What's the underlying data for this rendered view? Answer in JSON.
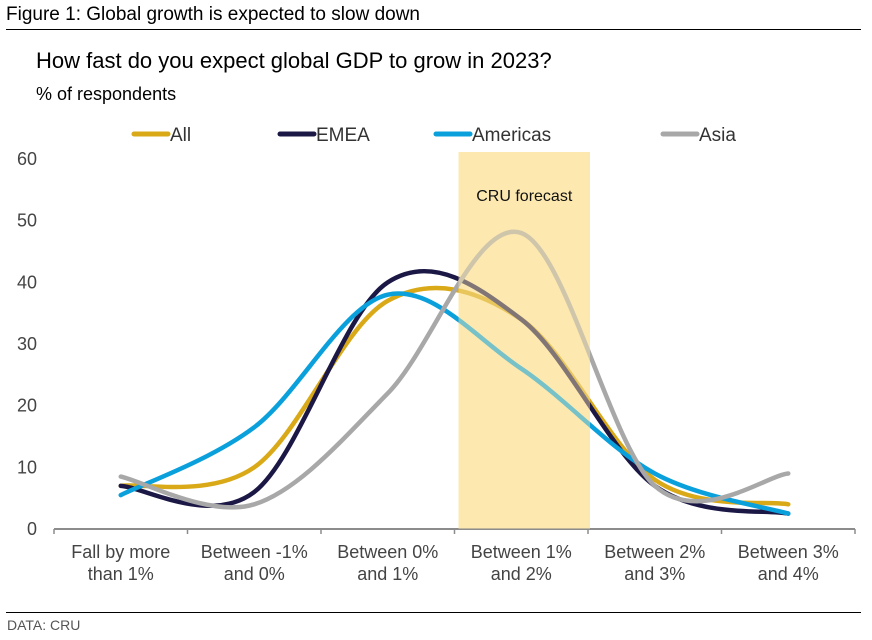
{
  "figure_title": "Figure 1: Global growth is expected to slow down",
  "source": "DATA: CRU",
  "chart_data": {
    "type": "line",
    "title": "How fast do you expect global GDP to grow in 2023?",
    "subtitle": "% of respondents",
    "xlabel": "",
    "ylabel": "% of respondents",
    "ylim": [
      0,
      60
    ],
    "yticks": [
      0,
      10,
      20,
      30,
      40,
      50,
      60
    ],
    "grid": false,
    "smoothed": true,
    "legend_position": "top",
    "categories": [
      [
        "Fall by more",
        "than 1%"
      ],
      [
        "Between -1%",
        "and 0%"
      ],
      [
        "Between 0%",
        "and 1%"
      ],
      [
        "Between 1%",
        "and 2%"
      ],
      [
        "Between 2%",
        "and 3%"
      ],
      [
        "Between 3%",
        "and 4%"
      ]
    ],
    "series": [
      {
        "name": "All",
        "color": "#D9A918",
        "values": [
          7,
          10,
          37,
          34,
          8,
          4
        ]
      },
      {
        "name": "EMEA",
        "color": "#1C1845",
        "values": [
          7,
          6,
          40,
          34,
          7,
          2.5
        ]
      },
      {
        "name": "Americas",
        "color": "#0AA0DC",
        "values": [
          5.5,
          16.5,
          38,
          26,
          9,
          2.5
        ]
      },
      {
        "name": "Asia",
        "color": "#A8A8A8",
        "values": [
          8.5,
          4,
          22,
          48,
          7,
          9
        ]
      }
    ],
    "highlight": {
      "label": "CRU forecast",
      "category_index": 3,
      "color": "#FDE9B0"
    }
  }
}
